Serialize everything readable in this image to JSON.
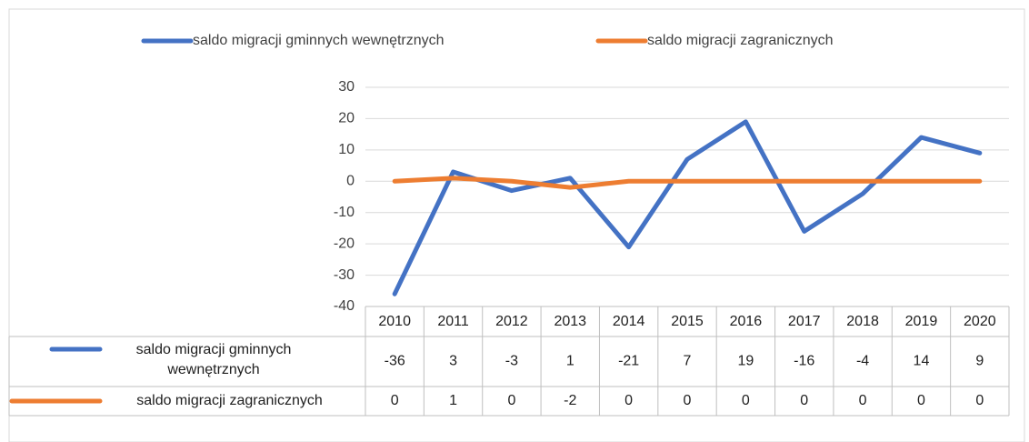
{
  "chart_data": {
    "type": "line",
    "categories": [
      "2010",
      "2011",
      "2012",
      "2013",
      "2014",
      "2015",
      "2016",
      "2017",
      "2018",
      "2019",
      "2020"
    ],
    "series": [
      {
        "name": "saldo migracji gminnych wewnętrznych",
        "color": "#4472c4",
        "values": [
          -36,
          3,
          -3,
          1,
          -21,
          7,
          19,
          -16,
          -4,
          14,
          9
        ]
      },
      {
        "name": "saldo migracji zagranicznych",
        "color": "#ed7d31",
        "values": [
          0,
          1,
          0,
          -2,
          0,
          0,
          0,
          0,
          0,
          0,
          0
        ]
      }
    ],
    "ylim": [
      -40,
      30
    ],
    "yticks": [
      -40,
      -30,
      -20,
      -10,
      0,
      10,
      20,
      30
    ],
    "grid": true,
    "legend": "top",
    "data_table": true
  }
}
